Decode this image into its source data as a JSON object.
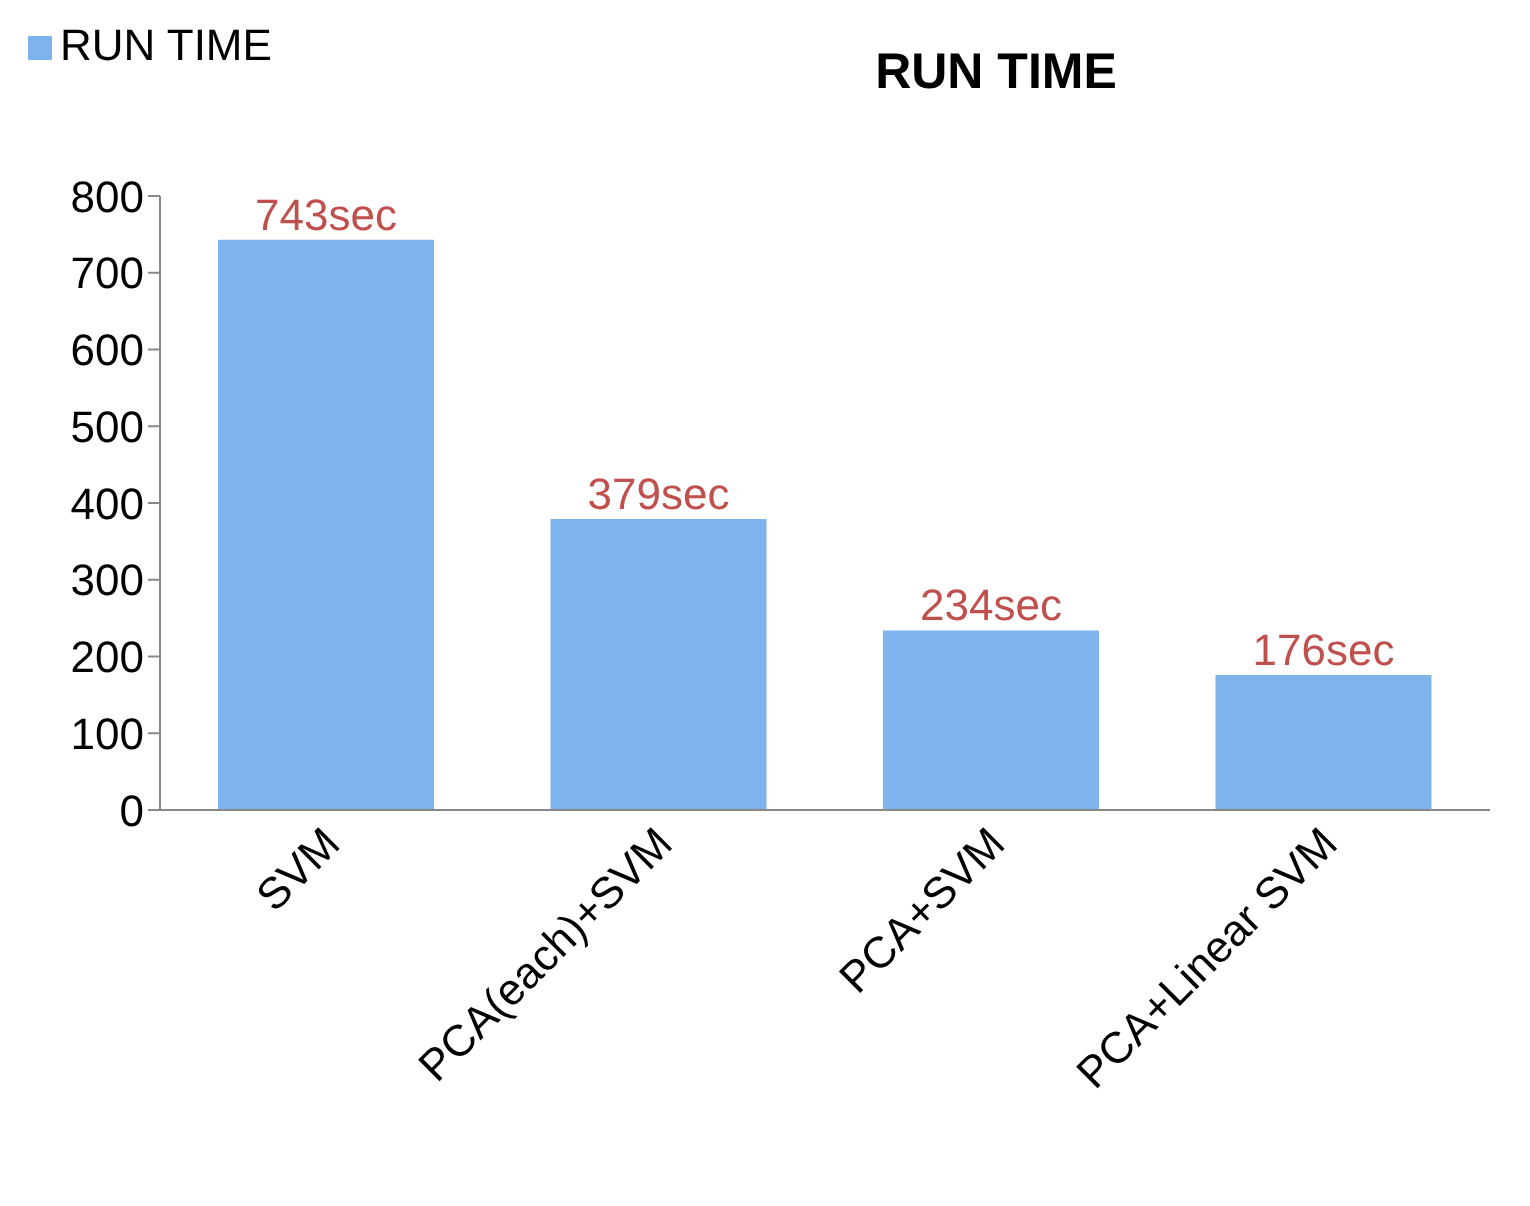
{
  "chart_data": {
    "type": "bar",
    "title": "RUN TIME",
    "categories": [
      "SVM",
      "PCA(each)+SVM",
      "PCA+SVM",
      "PCA+Linear SVM"
    ],
    "series": [
      {
        "name": "RUN TIME",
        "color": "#7fb3ec",
        "values": [
          743,
          379,
          234,
          176
        ],
        "value_labels": [
          "743sec",
          "379sec",
          "234sec",
          "176sec"
        ]
      }
    ],
    "ylim": [
      0,
      800
    ],
    "yticks": [
      0,
      100,
      200,
      300,
      400,
      500,
      600,
      700,
      800
    ],
    "grid": false,
    "legend": "top left"
  }
}
